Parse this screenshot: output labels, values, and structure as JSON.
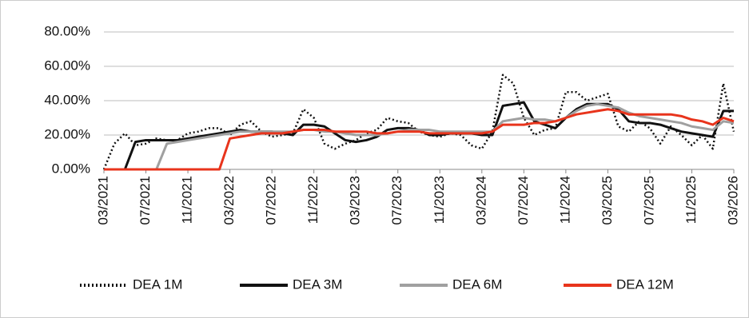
{
  "chart_data": {
    "type": "line",
    "categories": [
      "03/2021",
      null,
      null,
      null,
      "07/2021",
      null,
      null,
      null,
      "11/2021",
      null,
      null,
      null,
      "03/2022",
      null,
      null,
      null,
      "07/2022",
      null,
      null,
      null,
      "11/2022",
      null,
      null,
      null,
      "03/2023",
      null,
      null,
      null,
      "07/2023",
      null,
      null,
      null,
      "11/2023",
      null,
      null,
      null,
      "03/2024",
      null,
      null,
      null,
      "07/2024",
      null,
      null,
      null,
      "11/2024",
      null,
      null,
      null,
      "03/2025",
      null,
      null,
      null,
      "07/2025",
      null,
      null,
      null,
      "11/2025",
      null,
      null,
      null,
      "03/2026"
    ],
    "series": [
      {
        "name": "DEA 1M",
        "color": "#111111",
        "line_style": "dotted",
        "values": [
          0,
          15,
          21,
          14,
          15,
          18,
          17,
          17,
          21,
          22,
          24,
          24,
          20,
          26,
          28,
          22,
          19,
          20,
          21,
          35,
          30,
          15,
          12,
          15,
          17,
          21,
          23,
          30,
          28,
          27,
          22,
          20,
          19,
          21,
          20,
          14,
          12,
          22,
          55,
          50,
          30,
          20,
          23,
          24,
          45,
          45,
          40,
          42,
          44,
          25,
          22,
          28,
          24,
          15,
          25,
          20,
          14,
          20,
          12,
          50,
          22
        ]
      },
      {
        "name": "DEA 3M",
        "color": "#111111",
        "line_style": "solid",
        "values": [
          0,
          0,
          0,
          16,
          17,
          17,
          17,
          17,
          18,
          19,
          20,
          21,
          22,
          23,
          22,
          22,
          22,
          21,
          20,
          26,
          26,
          25,
          21,
          17,
          16,
          17,
          19,
          23,
          24,
          24,
          23,
          20,
          20,
          21,
          21,
          21,
          20,
          20,
          37,
          38,
          39,
          28,
          26,
          24,
          30,
          35,
          38,
          38,
          38,
          35,
          28,
          27,
          27,
          26,
          24,
          22,
          21,
          20,
          19,
          34,
          34
        ]
      },
      {
        "name": "DEA 6M",
        "color": "#a0a0a0",
        "line_style": "solid",
        "values": [
          0,
          0,
          0,
          0,
          0,
          0,
          15,
          16,
          17,
          18,
          19,
          20,
          21,
          22,
          22,
          22,
          22,
          22,
          22,
          23,
          23,
          22,
          22,
          21,
          20,
          20,
          20,
          21,
          22,
          23,
          23,
          23,
          22,
          22,
          22,
          22,
          22,
          22,
          28,
          29,
          30,
          29,
          29,
          28,
          30,
          34,
          37,
          38,
          37,
          36,
          33,
          31,
          30,
          29,
          28,
          27,
          25,
          24,
          23,
          28,
          27
        ]
      },
      {
        "name": "DEA 12M",
        "color": "#e8341c",
        "line_style": "solid",
        "values": [
          0,
          0,
          0,
          0,
          0,
          0,
          0,
          0,
          0,
          0,
          0,
          0,
          18,
          19,
          20,
          21,
          21,
          21,
          22,
          23,
          23,
          23,
          22,
          22,
          22,
          22,
          21,
          21,
          22,
          22,
          22,
          21,
          21,
          21,
          21,
          21,
          21,
          22,
          26,
          26,
          26,
          27,
          27,
          28,
          30,
          32,
          33,
          34,
          35,
          34,
          32,
          32,
          32,
          32,
          32,
          31,
          29,
          28,
          26,
          30,
          28
        ]
      }
    ],
    "ylim": [
      0,
      80
    ],
    "yticks": [
      {
        "value": 0,
        "label": "0.00%"
      },
      {
        "value": 20,
        "label": "20.00%"
      },
      {
        "value": 40,
        "label": "40.00%"
      },
      {
        "value": 60,
        "label": "60.00%"
      },
      {
        "value": 80,
        "label": "80.00%"
      }
    ],
    "grid": true,
    "legend": "bottom"
  }
}
